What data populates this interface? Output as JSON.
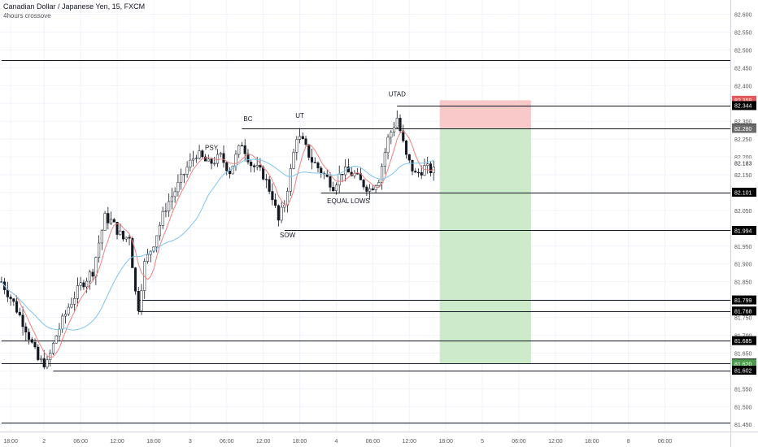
{
  "header": {
    "symbol_title": "Canadian Dollar / Japanese Yen, 15, FXCM",
    "indicator": "4hours crossove"
  },
  "colors": {
    "up": "#ffffff",
    "down": "#131722",
    "wick": "#131722",
    "ma_red": "#f08080",
    "ma_blue": "#7cc4ef",
    "stop_zone": "#f9c9c9",
    "target_zone": "#cdebca",
    "grid": "#f0f3fa",
    "axis_text": "#555555"
  },
  "chart_data": {
    "type": "candlestick",
    "ylim": [
      81.43,
      82.64
    ],
    "y_ticks": [
      "82.600",
      "82.550",
      "82.500",
      "82.450",
      "82.400",
      "82.350",
      "82.300",
      "82.250",
      "82.200",
      "82.150",
      "82.100",
      "82.050",
      "82.000",
      "81.950",
      "81.900",
      "81.850",
      "81.800",
      "81.750",
      "81.700",
      "81.650",
      "81.600",
      "81.550",
      "81.500",
      "81.450"
    ],
    "x_ticks": [
      {
        "label": "18:00",
        "idx": 3
      },
      {
        "label": "2",
        "idx": 14
      },
      {
        "label": "06:00",
        "idx": 26
      },
      {
        "label": "12:00",
        "idx": 38
      },
      {
        "label": "18:00",
        "idx": 50
      },
      {
        "label": "3",
        "idx": 62
      },
      {
        "label": "06:00",
        "idx": 74
      },
      {
        "label": "12:00",
        "idx": 86
      },
      {
        "label": "18:00",
        "idx": 98
      },
      {
        "label": "4",
        "idx": 110
      },
      {
        "label": "06:00",
        "idx": 122
      },
      {
        "label": "12:00",
        "idx": 134
      },
      {
        "label": "18:00",
        "idx": 146
      },
      {
        "label": "5",
        "idx": 158
      },
      {
        "label": "06:00",
        "idx": 170
      },
      {
        "label": "12:00",
        "idx": 182
      },
      {
        "label": "18:00",
        "idx": 194
      },
      {
        "label": "8",
        "idx": 206
      },
      {
        "label": "06:00",
        "idx": 218
      }
    ],
    "bars_visible": 240,
    "anchors": [
      [
        0,
        81.85
      ],
      [
        4,
        81.79
      ],
      [
        8,
        81.72
      ],
      [
        12,
        81.63
      ],
      [
        15,
        81.62
      ],
      [
        18,
        81.7
      ],
      [
        22,
        81.78
      ],
      [
        26,
        81.84
      ],
      [
        30,
        81.88
      ],
      [
        32,
        81.96
      ],
      [
        34,
        82.03
      ],
      [
        36,
        82.02
      ],
      [
        40,
        81.97
      ],
      [
        42,
        81.98
      ],
      [
        44,
        81.82
      ],
      [
        45,
        81.78
      ],
      [
        47,
        81.9
      ],
      [
        50,
        81.96
      ],
      [
        54,
        82.06
      ],
      [
        58,
        82.12
      ],
      [
        61,
        82.17
      ],
      [
        64,
        82.21
      ],
      [
        68,
        82.18
      ],
      [
        72,
        82.2
      ],
      [
        75,
        82.16
      ],
      [
        79,
        82.24
      ],
      [
        82,
        82.18
      ],
      [
        86,
        82.15
      ],
      [
        89,
        82.09
      ],
      [
        91,
        82.02
      ],
      [
        93,
        82.07
      ],
      [
        95,
        82.16
      ],
      [
        97,
        82.26
      ],
      [
        99,
        82.24
      ],
      [
        102,
        82.19
      ],
      [
        106,
        82.15
      ],
      [
        109,
        82.12
      ],
      [
        112,
        82.16
      ],
      [
        116,
        82.15
      ],
      [
        118,
        82.13
      ],
      [
        121,
        82.11
      ],
      [
        124,
        82.14
      ],
      [
        127,
        82.25
      ],
      [
        130,
        82.31
      ],
      [
        133,
        82.2
      ],
      [
        136,
        82.15
      ],
      [
        139,
        82.17
      ],
      [
        142,
        82.16
      ]
    ],
    "ohlc_seed": 7,
    "candles_last_index": 142,
    "levels": [
      {
        "price": 82.472,
        "label": "",
        "x_from_idx": 0
      },
      {
        "price": 82.344,
        "label": "82.344",
        "x_from_idx": 130
      },
      {
        "price": 82.281,
        "label": "82.281",
        "x_from_idx": 79
      },
      {
        "price": 82.101,
        "label": "82.101",
        "x_from_idx": 105
      },
      {
        "price": 81.994,
        "label": "81.994",
        "x_from_idx": 93
      },
      {
        "price": 81.799,
        "label": "81.799",
        "x_from_idx": 45
      },
      {
        "price": 81.768,
        "label": "81.768",
        "x_from_idx": 45
      },
      {
        "price": 81.685,
        "label": "81.685",
        "x_from_idx": 0
      },
      {
        "price": 81.622,
        "label": "81.622",
        "x_from_idx": 0
      },
      {
        "price": 81.602,
        "label": "81.602",
        "x_from_idx": 17
      },
      {
        "price": 81.455,
        "label": "",
        "x_from_idx": 0
      }
    ],
    "price_tags": [
      {
        "price": 82.359,
        "label": "82.359",
        "bg": "#e05c5c"
      },
      {
        "price": 82.344,
        "label": "82.344",
        "bg": "#000000"
      },
      {
        "price": 82.281,
        "label": "82.281",
        "bg": "#000000"
      },
      {
        "price": 82.28,
        "label": "82.280",
        "bg": "#6b6b6b"
      },
      {
        "price": 82.183,
        "label": "82.183",
        "bg": "none"
      },
      {
        "price": 82.101,
        "label": "82.101",
        "bg": "#000000"
      },
      {
        "price": 81.994,
        "label": "81.994",
        "bg": "#000000"
      },
      {
        "price": 81.799,
        "label": "81.799",
        "bg": "#000000"
      },
      {
        "price": 81.768,
        "label": "81.768",
        "bg": "#000000"
      },
      {
        "price": 81.685,
        "label": "81.685",
        "bg": "#000000"
      },
      {
        "price": 81.622,
        "label": "81.622",
        "bg": "#000000"
      },
      {
        "price": 81.62,
        "label": "81.620",
        "bg": "#4c9a4c"
      },
      {
        "price": 81.602,
        "label": "81.602",
        "bg": "#000000"
      }
    ],
    "position": {
      "entry": 82.281,
      "stop": 82.359,
      "target": 81.62,
      "from_idx": 144,
      "to_idx": 174
    },
    "annotations": [
      {
        "text": "PSY",
        "idx": 69,
        "price": 82.22
      },
      {
        "text": "BC",
        "idx": 81,
        "price": 82.3
      },
      {
        "text": "UT",
        "idx": 98,
        "price": 82.31
      },
      {
        "text": "UTAD",
        "idx": 130,
        "price": 82.37
      },
      {
        "text": "EQUAL LOWS",
        "idx": 114,
        "price": 82.07
      },
      {
        "text": "SOW",
        "idx": 94,
        "price": 81.975
      }
    ]
  }
}
